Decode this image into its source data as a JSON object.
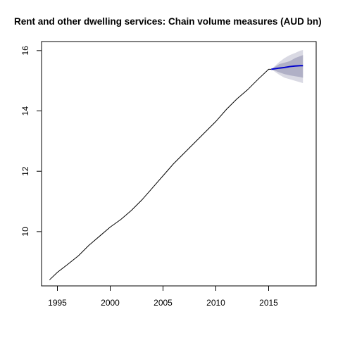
{
  "chart_data": {
    "type": "line",
    "title": "Rent and other dwelling services: Chain volume measures (AUD bn)",
    "xlabel": "",
    "ylabel": "",
    "xlim": [
      1993.5,
      2019.5
    ],
    "ylim": [
      8.2,
      16.3
    ],
    "x_ticks": [
      1995,
      2000,
      2005,
      2010,
      2015
    ],
    "x_tick_labels": [
      "1995",
      "2000",
      "2005",
      "2010",
      "2015"
    ],
    "y_ticks": [
      10,
      12,
      14,
      16
    ],
    "y_tick_labels": [
      "10",
      "12",
      "14",
      "16"
    ],
    "grid": false,
    "legend": "none",
    "colors": {
      "history": "#000000",
      "forecast": "#0000cd",
      "band_95": "#d9d9e3",
      "band_80": "#b0b0c6"
    },
    "series": [
      {
        "role": "history",
        "x": [
          1994.25,
          1995.0,
          1996.0,
          1997.0,
          1998.0,
          1999.0,
          2000.0,
          2001.0,
          2002.0,
          2003.0,
          2004.0,
          2005.0,
          2006.0,
          2007.0,
          2008.0,
          2009.0,
          2010.0,
          2011.0,
          2012.0,
          2013.0,
          2014.0,
          2015.0,
          2015.25
        ],
        "y": [
          8.4,
          8.65,
          8.92,
          9.2,
          9.55,
          9.85,
          10.15,
          10.4,
          10.7,
          11.05,
          11.45,
          11.85,
          12.25,
          12.6,
          12.95,
          13.3,
          13.65,
          14.05,
          14.4,
          14.7,
          15.05,
          15.38,
          15.38
        ]
      },
      {
        "role": "forecast",
        "x": [
          2015.25,
          2016.0,
          2016.5,
          2017.0,
          2017.5,
          2018.0,
          2018.25
        ],
        "y": [
          15.38,
          15.42,
          15.44,
          15.47,
          15.49,
          15.5,
          15.5
        ],
        "lo80": [
          15.38,
          15.28,
          15.22,
          15.18,
          15.15,
          15.12,
          15.1
        ],
        "hi80": [
          15.38,
          15.55,
          15.6,
          15.65,
          15.75,
          15.82,
          15.85
        ],
        "lo95": [
          15.38,
          15.2,
          15.1,
          15.05,
          15.0,
          14.95,
          14.92
        ],
        "hi95": [
          15.38,
          15.62,
          15.75,
          15.85,
          15.92,
          16.0,
          16.02
        ]
      }
    ]
  }
}
